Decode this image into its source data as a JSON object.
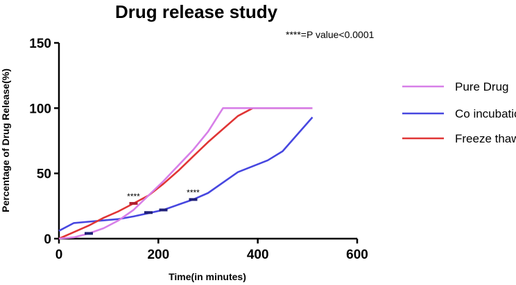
{
  "chart_data": {
    "type": "line",
    "title": "Drug release study",
    "annotation": "****=P value<0.0001",
    "xlabel": "Time(in minutes)",
    "ylabel": "Percentage of Drug Release(%)",
    "xlim": [
      0,
      600
    ],
    "ylim": [
      0,
      150
    ],
    "xticks": [
      0,
      200,
      400,
      600
    ],
    "yticks": [
      0,
      50,
      100,
      150
    ],
    "grid": false,
    "legend_position": "right",
    "series": [
      {
        "name": "Pure Drug",
        "color": "#d77fe8",
        "points": [
          [
            0,
            0
          ],
          [
            30,
            1
          ],
          [
            60,
            4
          ],
          [
            90,
            8
          ],
          [
            120,
            14
          ],
          [
            150,
            22
          ],
          [
            180,
            33
          ],
          [
            210,
            44
          ],
          [
            240,
            56
          ],
          [
            270,
            68
          ],
          [
            300,
            82
          ],
          [
            330,
            100
          ],
          [
            360,
            100
          ],
          [
            390,
            100
          ],
          [
            420,
            100
          ],
          [
            450,
            100
          ],
          [
            510,
            100
          ]
        ]
      },
      {
        "name": "Co incubation",
        "color": "#4747e0",
        "points": [
          [
            0,
            6
          ],
          [
            30,
            12
          ],
          [
            60,
            13
          ],
          [
            90,
            14
          ],
          [
            120,
            15
          ],
          [
            150,
            17
          ],
          [
            180,
            19.5
          ],
          [
            210,
            22
          ],
          [
            240,
            26
          ],
          [
            270,
            30
          ],
          [
            300,
            35
          ],
          [
            360,
            51
          ],
          [
            420,
            60
          ],
          [
            450,
            67
          ],
          [
            510,
            93
          ]
        ],
        "error_bars": [
          [
            60,
            4
          ],
          [
            180,
            20
          ],
          [
            210,
            22
          ],
          [
            270,
            30
          ]
        ]
      },
      {
        "name": "Freeze thaw",
        "color": "#e03535",
        "points": [
          [
            0,
            0
          ],
          [
            30,
            5
          ],
          [
            60,
            10
          ],
          [
            90,
            16
          ],
          [
            120,
            21
          ],
          [
            150,
            27
          ],
          [
            180,
            33
          ],
          [
            210,
            42
          ],
          [
            240,
            52
          ],
          [
            270,
            63
          ],
          [
            300,
            74
          ],
          [
            330,
            84
          ],
          [
            360,
            94
          ],
          [
            390,
            100
          ],
          [
            420,
            100
          ],
          [
            450,
            100
          ],
          [
            510,
            100
          ]
        ],
        "error_bars": [
          [
            150,
            27
          ]
        ]
      }
    ],
    "significance_marks": [
      {
        "label": "****",
        "x": 150,
        "y": 27
      },
      {
        "label": "****",
        "x": 270,
        "y": 30
      }
    ]
  }
}
